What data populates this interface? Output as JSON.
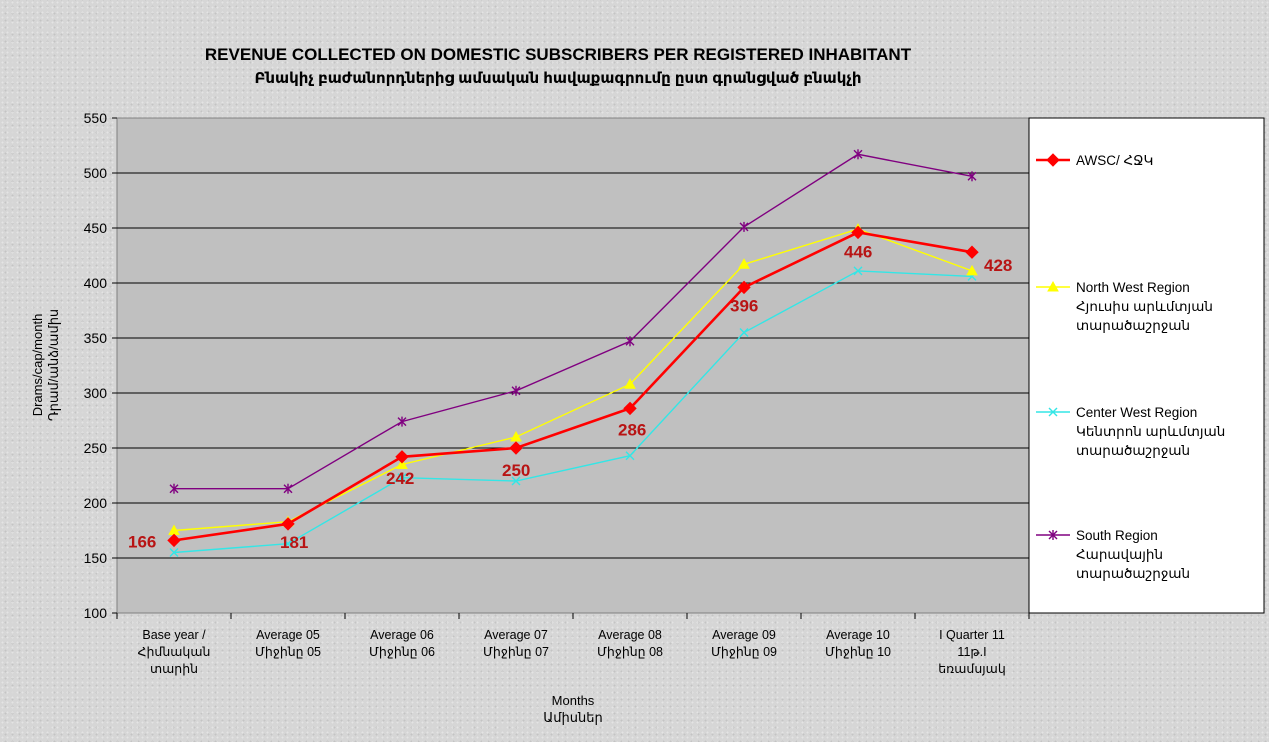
{
  "chart_data": {
    "type": "line",
    "title": "REVENUE COLLECTED ON DOMESTIC SUBSCRIBERS PER REGISTERED INHABITANT",
    "subtitle": "Բնակիչ բաժանորդներից ամսական հավաքագրումը ըստ գրանցված բնակչի",
    "xlabel": [
      "Months",
      "Ամիսներ"
    ],
    "ylabel": [
      "Drams/cap/month",
      "Դրամ/անձ/ամիս"
    ],
    "ylim": [
      100,
      550
    ],
    "yticks": [
      "100",
      "150",
      "200",
      "250",
      "300",
      "350",
      "400",
      "450",
      "500",
      "550"
    ],
    "grid": true,
    "legend_position": "right",
    "categories": [
      [
        "Base year /",
        "Հիմնական",
        "տարին"
      ],
      [
        "Average 05",
        "Միջինը 05"
      ],
      [
        "Average 06",
        "Միջինը 06"
      ],
      [
        "Average 07",
        "Միջինը 07"
      ],
      [
        "Average 08",
        "Միջինը 08"
      ],
      [
        "Average 09",
        "Միջինը 09"
      ],
      [
        "Average 10",
        "Միջինը 10"
      ],
      [
        "I Quarter 11",
        "11թ.I",
        "եռամսյակ"
      ]
    ],
    "series": [
      {
        "name": [
          "AWSC/ ՀՋԿ"
        ],
        "color": "#ff0000",
        "marker": "diamond",
        "values": [
          166,
          181,
          242,
          250,
          286,
          396,
          446,
          428
        ],
        "data_labels": [
          "166",
          "181",
          "242",
          "250",
          "286",
          "396",
          "446",
          "428"
        ]
      },
      {
        "name": [
          "North West Region",
          "Հյուսիս արևմտյան",
          "տարածաշրջան"
        ],
        "color": "#ffff00",
        "marker": "triangle",
        "values": [
          175,
          183,
          235,
          260,
          308,
          417,
          449,
          411
        ]
      },
      {
        "name": [
          "Center West Region",
          "Կենտրոն արևմտյան",
          "տարածաշրջան"
        ],
        "color": "#33e6e6",
        "marker": "x",
        "values": [
          155,
          163,
          223,
          220,
          243,
          355,
          411,
          406
        ]
      },
      {
        "name": [
          "South Region",
          "Հարավային",
          "տարածաշրջան"
        ],
        "color": "#800080",
        "marker": "star",
        "values": [
          213,
          213,
          274,
          302,
          347,
          451,
          517,
          497
        ]
      }
    ]
  }
}
